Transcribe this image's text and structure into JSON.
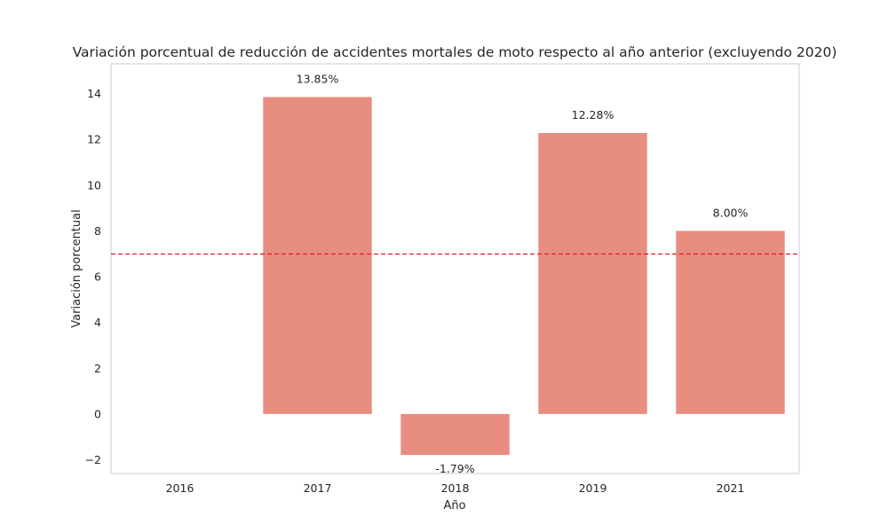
{
  "chart_data": {
    "type": "bar",
    "title": "Variación porcentual de reducción de accidentes mortales de moto respecto al año anterior (excluyendo 2020)",
    "xlabel": "Año",
    "ylabel": "Variación porcentual",
    "categories": [
      "2016",
      "2017",
      "2018",
      "2019",
      "2021"
    ],
    "values": [
      null,
      13.85,
      -1.79,
      12.28,
      8.0
    ],
    "value_labels": [
      "",
      "13.85%",
      "-1.79%",
      "12.28%",
      "8.00%"
    ],
    "yticks": [
      -2,
      0,
      2,
      4,
      6,
      8,
      10,
      12,
      14
    ],
    "ytick_labels": [
      "−2",
      "0",
      "2",
      "4",
      "6",
      "8",
      "10",
      "12",
      "14"
    ],
    "ylim": [
      -2.6,
      15.3
    ],
    "reference_line": {
      "value": 6.99,
      "style": "dashed",
      "color": "#e31a1c"
    },
    "bar_color": "#e88e81",
    "grid": false
  }
}
